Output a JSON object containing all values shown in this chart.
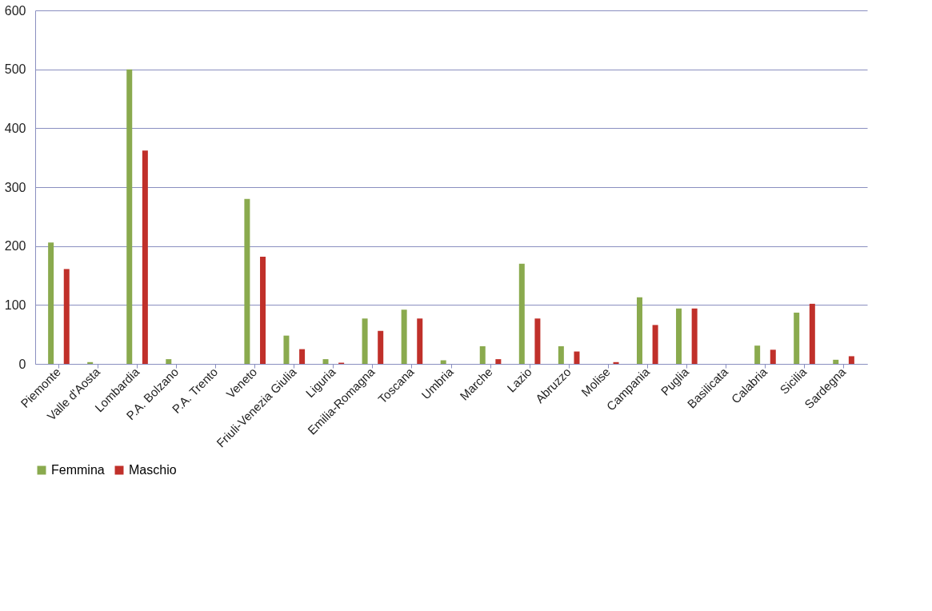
{
  "chart_data": {
    "type": "bar",
    "categories": [
      "Piemonte",
      "Valle d'Aosta",
      "Lombardia",
      "P.A. Bolzano",
      "P.A. Trento",
      "Veneto",
      "Friuli-Venezia Giulia",
      "Liguria",
      "Emilia-Romagna",
      "Toscana",
      "Umbria",
      "Marche",
      "Lazio",
      "Abruzzo",
      "Molise",
      "Campania",
      "Puglia",
      "Basilicata",
      "Calabria",
      "Sicilia",
      "Sardegna"
    ],
    "series": [
      {
        "name": "Femmina",
        "color": "#8aaa4e",
        "values": [
          206,
          3,
          500,
          8,
          0,
          280,
          48,
          8,
          77,
          92,
          6,
          30,
          170,
          30,
          0,
          113,
          94,
          0,
          31,
          87,
          7
        ]
      },
      {
        "name": "Maschio",
        "color": "#c0302a",
        "values": [
          161,
          0,
          362,
          0,
          0,
          182,
          25,
          2,
          56,
          77,
          0,
          8,
          77,
          21,
          3,
          66,
          94,
          0,
          24,
          102,
          13
        ]
      }
    ],
    "ylim": [
      0,
      600
    ],
    "yticks": [
      0,
      100,
      200,
      300,
      400,
      500,
      600
    ],
    "grid": "y",
    "legend": "bottom"
  }
}
